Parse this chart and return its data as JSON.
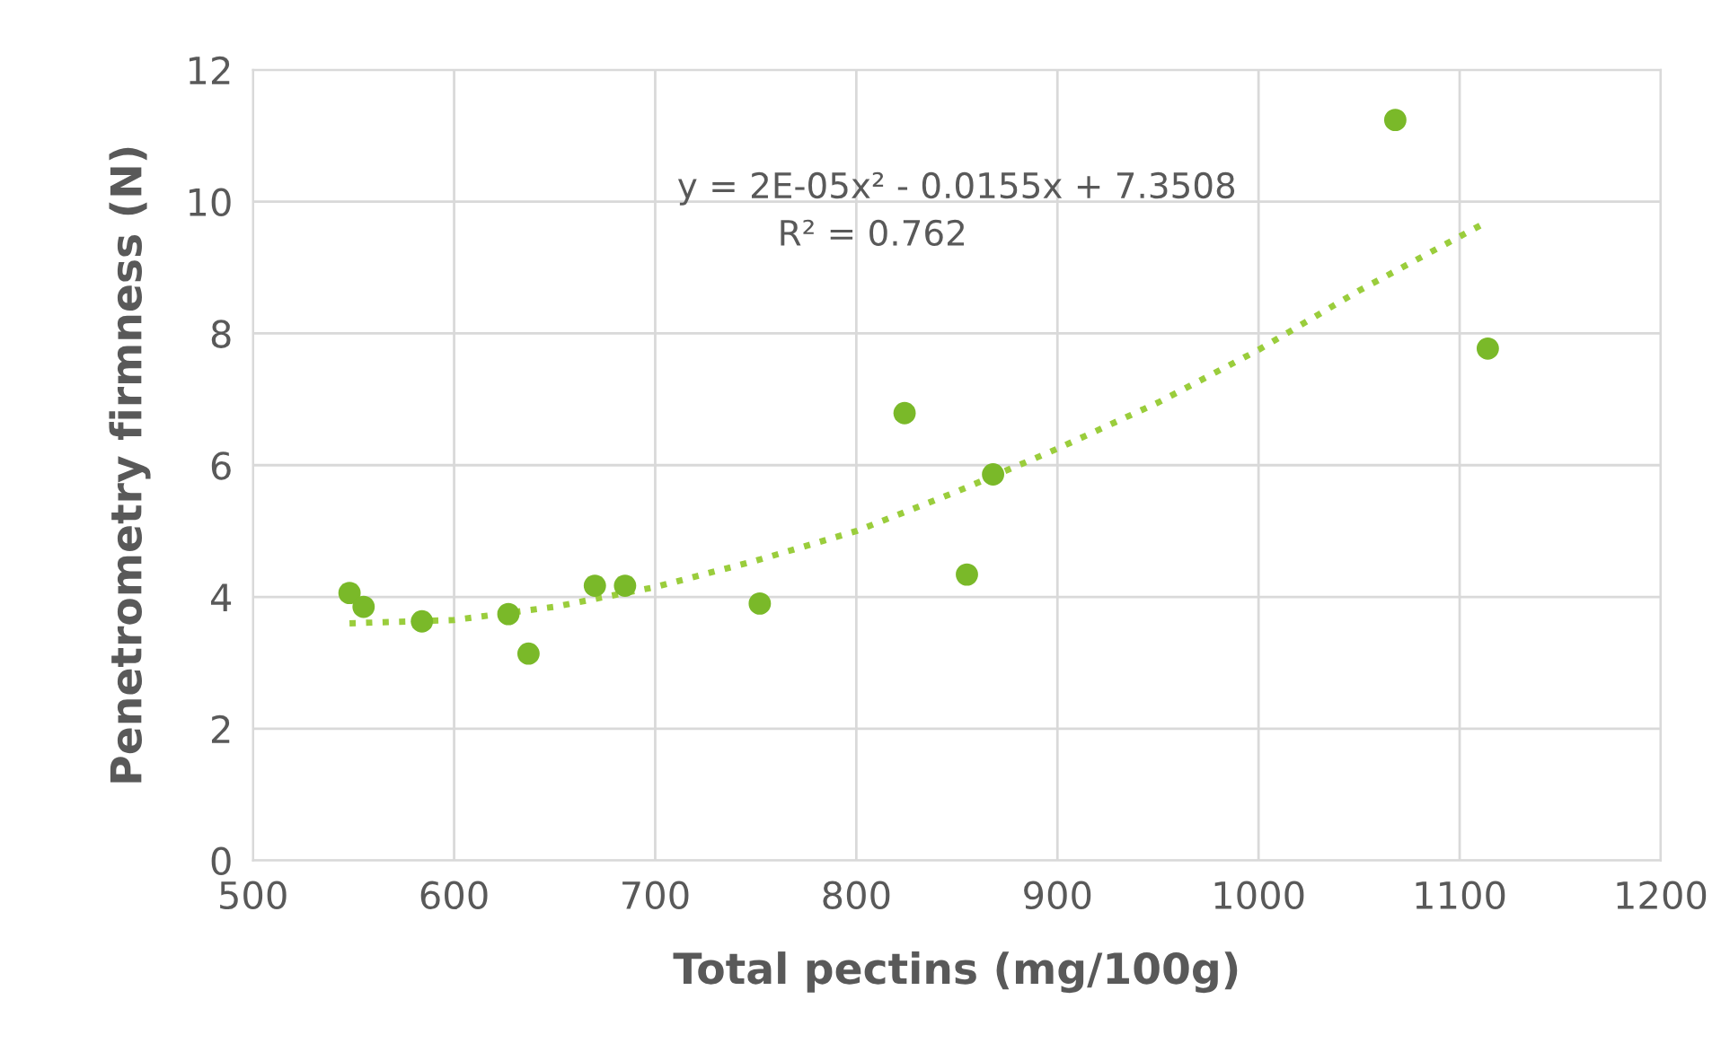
{
  "chart_data": {
    "type": "scatter",
    "xlabel": "Total pectins (mg/100g)",
    "ylabel": "Penetrometry firmness (N)",
    "annotations": [
      "y = 2E-05x² - 0.0155x + 7.3508",
      "R² = 0.762"
    ],
    "x": [
      548,
      555,
      584,
      627,
      637,
      670,
      685,
      752,
      824,
      855,
      868,
      1068,
      1114
    ],
    "series": [
      {
        "color": "#7ab929",
        "marker": "circle",
        "values": [
          4.06,
          3.85,
          3.63,
          3.74,
          3.14,
          4.17,
          4.17,
          3.9,
          6.79,
          4.34,
          5.86,
          11.24,
          7.77
        ]
      },
      {
        "type": "line",
        "color": "#9acd3c",
        "line_style": "dotted",
        "x": [
          548,
          600,
          650,
          700,
          750,
          800,
          850,
          900,
          950,
          1000,
          1050,
          1114
        ],
        "values": [
          3.6,
          3.65,
          3.85,
          4.15,
          4.55,
          5.0,
          5.6,
          6.25,
          6.95,
          7.75,
          8.65,
          9.7
        ]
      }
    ],
    "xlim": [
      500,
      1200
    ],
    "xticks": [
      500,
      600,
      700,
      800,
      900,
      1000,
      1100,
      1200
    ],
    "ylim": [
      0,
      12
    ],
    "yticks": [
      0,
      2,
      4,
      6,
      8,
      10,
      12
    ],
    "grid": true,
    "legend": false
  }
}
